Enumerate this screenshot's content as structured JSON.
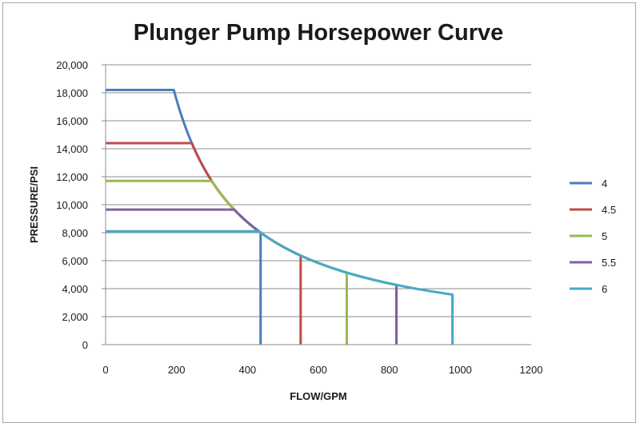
{
  "chart_data": {
    "type": "line",
    "title": "Plunger Pump Horsepower Curve",
    "xlabel": "FLOW/GPM",
    "ylabel": "PRESSURE/PSI",
    "xlim": [
      0,
      1200
    ],
    "ylim": [
      0,
      20000
    ],
    "x_ticks": [
      0,
      200,
      400,
      600,
      800,
      1000,
      1200
    ],
    "y_ticks": [
      0,
      2000,
      4000,
      6000,
      8000,
      10000,
      12000,
      14000,
      16000,
      18000,
      20000
    ],
    "x_tick_labels": [
      "0",
      "200",
      "400",
      "600",
      "800",
      "1000",
      "1200"
    ],
    "y_tick_labels": [
      "0",
      "2,000",
      "4,000",
      "6,000",
      "8,000",
      "10,000",
      "12,000",
      "14,000",
      "16,000",
      "18,000",
      "20,000"
    ],
    "grid": "horizontal",
    "legend_position": "right",
    "curve_constant": 3500000,
    "series": [
      {
        "name": "4",
        "color": "#4a7ebb",
        "max_pressure": 18200,
        "max_flow": 437
      },
      {
        "name": "4.5",
        "color": "#be4b48",
        "max_pressure": 14400,
        "max_flow": 550
      },
      {
        "name": "5",
        "color": "#98b954",
        "max_pressure": 11700,
        "max_flow": 680
      },
      {
        "name": "5.5",
        "color": "#7d60a0",
        "max_pressure": 9650,
        "max_flow": 820
      },
      {
        "name": "6",
        "color": "#46aac5",
        "max_pressure": 8100,
        "max_flow": 978
      }
    ]
  }
}
